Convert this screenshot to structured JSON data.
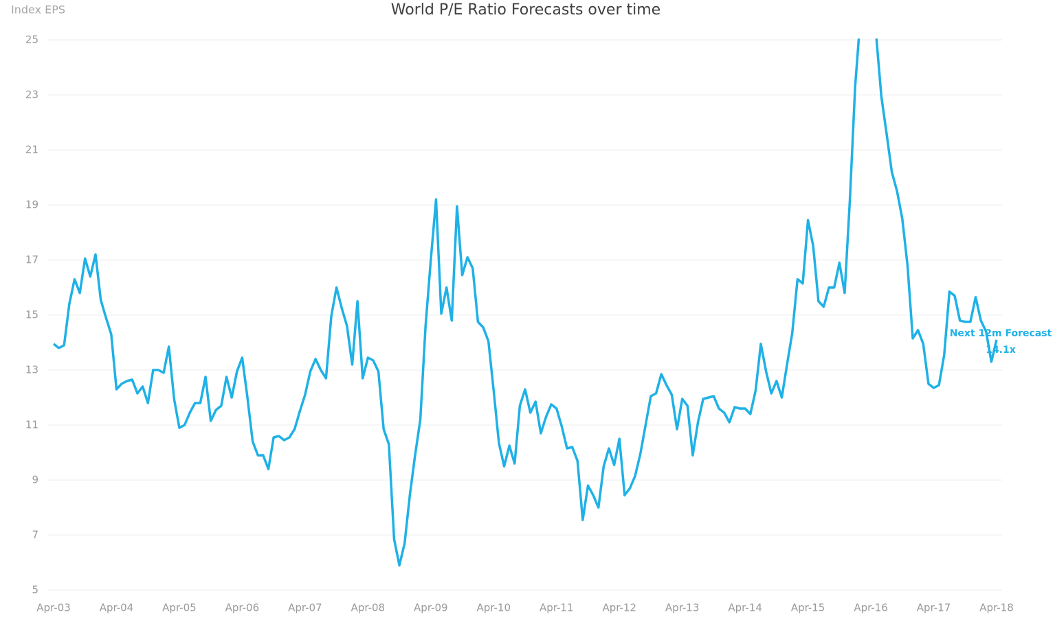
{
  "chart_data": {
    "type": "line",
    "title": "World P/E Ratio Forecasts over time",
    "y_label": "Index EPS",
    "annotation": [
      "Next 12m Forecast",
      "14.1x"
    ],
    "categories": [
      "Apr-03",
      null,
      null,
      null,
      null,
      null,
      null,
      null,
      null,
      null,
      null,
      null,
      "Apr-04",
      null,
      null,
      null,
      null,
      null,
      null,
      null,
      null,
      null,
      null,
      null,
      "Apr-05",
      null,
      null,
      null,
      null,
      null,
      null,
      null,
      null,
      null,
      null,
      null,
      "Apr-06",
      null,
      null,
      null,
      null,
      null,
      null,
      null,
      null,
      null,
      null,
      null,
      "Apr-07",
      null,
      null,
      null,
      null,
      null,
      null,
      null,
      null,
      null,
      null,
      null,
      "Apr-08",
      null,
      null,
      null,
      null,
      null,
      null,
      null,
      null,
      null,
      null,
      null,
      "Apr-09",
      null,
      null,
      null,
      null,
      null,
      null,
      null,
      null,
      null,
      null,
      null,
      "Apr-10",
      null,
      null,
      null,
      null,
      null,
      null,
      null,
      null,
      null,
      null,
      null,
      "Apr-11",
      null,
      null,
      null,
      null,
      null,
      null,
      null,
      null,
      null,
      null,
      null,
      "Apr-12",
      null,
      null,
      null,
      null,
      null,
      null,
      null,
      null,
      null,
      null,
      null,
      "Apr-13",
      null,
      null,
      null,
      null,
      null,
      null,
      null,
      null,
      null,
      null,
      null,
      "Apr-14",
      null,
      null,
      null,
      null,
      null,
      null,
      null,
      null,
      null,
      null,
      null,
      "Apr-15",
      null,
      null,
      null,
      null,
      null,
      null,
      null,
      null,
      null,
      null,
      null,
      "Apr-16",
      null,
      null,
      null,
      null,
      null,
      null,
      null,
      null,
      null,
      null,
      null,
      "Apr-17",
      null,
      null,
      null,
      null,
      null,
      null,
      null,
      null,
      null,
      null,
      null,
      "Apr-18"
    ],
    "series": [
      {
        "name": "World P/E",
        "color": "#1fb1e6",
        "values": [
          13.95,
          13.8,
          13.9,
          15.4,
          16.3,
          15.8,
          17.05,
          16.4,
          17.2,
          15.55,
          14.9,
          14.3,
          12.3,
          12.5,
          12.6,
          12.65,
          12.15,
          12.4,
          11.8,
          13.0,
          13.0,
          12.9,
          13.85,
          11.95,
          10.9,
          11.0,
          11.45,
          11.8,
          11.8,
          12.75,
          11.15,
          11.55,
          11.7,
          12.75,
          12.0,
          12.95,
          13.45,
          12.0,
          10.4,
          9.9,
          9.9,
          9.4,
          10.55,
          10.6,
          10.45,
          10.55,
          10.85,
          11.5,
          12.1,
          12.95,
          13.4,
          13.0,
          12.7,
          14.95,
          16.0,
          15.25,
          14.6,
          13.2,
          15.5,
          12.7,
          13.45,
          13.35,
          12.95,
          10.85,
          10.3,
          6.85,
          5.9,
          6.7,
          8.45,
          9.9,
          11.2,
          14.6,
          17.0,
          19.2,
          15.05,
          16.0,
          14.8,
          18.95,
          16.45,
          17.1,
          16.7,
          14.75,
          14.55,
          14.05,
          12.25,
          10.35,
          9.5,
          10.25,
          9.6,
          11.7,
          12.3,
          11.45,
          11.85,
          10.7,
          11.3,
          11.75,
          11.6,
          10.95,
          10.15,
          10.2,
          9.7,
          7.55,
          8.8,
          8.45,
          8.0,
          9.5,
          10.15,
          9.55,
          10.5,
          8.45,
          8.7,
          9.15,
          9.95,
          11.0,
          12.05,
          12.15,
          12.85,
          12.45,
          12.1,
          10.85,
          11.95,
          11.7,
          9.9,
          11.1,
          11.95,
          12.0,
          12.05,
          11.6,
          11.45,
          11.1,
          11.65,
          11.6,
          11.6,
          11.4,
          12.25,
          13.95,
          12.95,
          12.15,
          12.6,
          12.0,
          13.2,
          14.35,
          16.3,
          16.15,
          18.45,
          17.5,
          15.5,
          15.3,
          16.0,
          16.0,
          16.9,
          15.8,
          19.2,
          23.3,
          25.8,
          26.5,
          26.2,
          25.2,
          22.95,
          21.6,
          20.2,
          19.5,
          18.5,
          16.8,
          14.15,
          14.45,
          13.95,
          12.5,
          12.35,
          12.45,
          13.55,
          15.85,
          15.7,
          14.8,
          14.75,
          14.75,
          15.65,
          14.8,
          14.4,
          13.3,
          14.1
        ]
      }
    ],
    "ylim": [
      5,
      25
    ],
    "yticks": [
      5,
      7,
      9,
      11,
      13,
      15,
      17,
      19,
      21,
      23,
      25
    ],
    "grid": true
  }
}
